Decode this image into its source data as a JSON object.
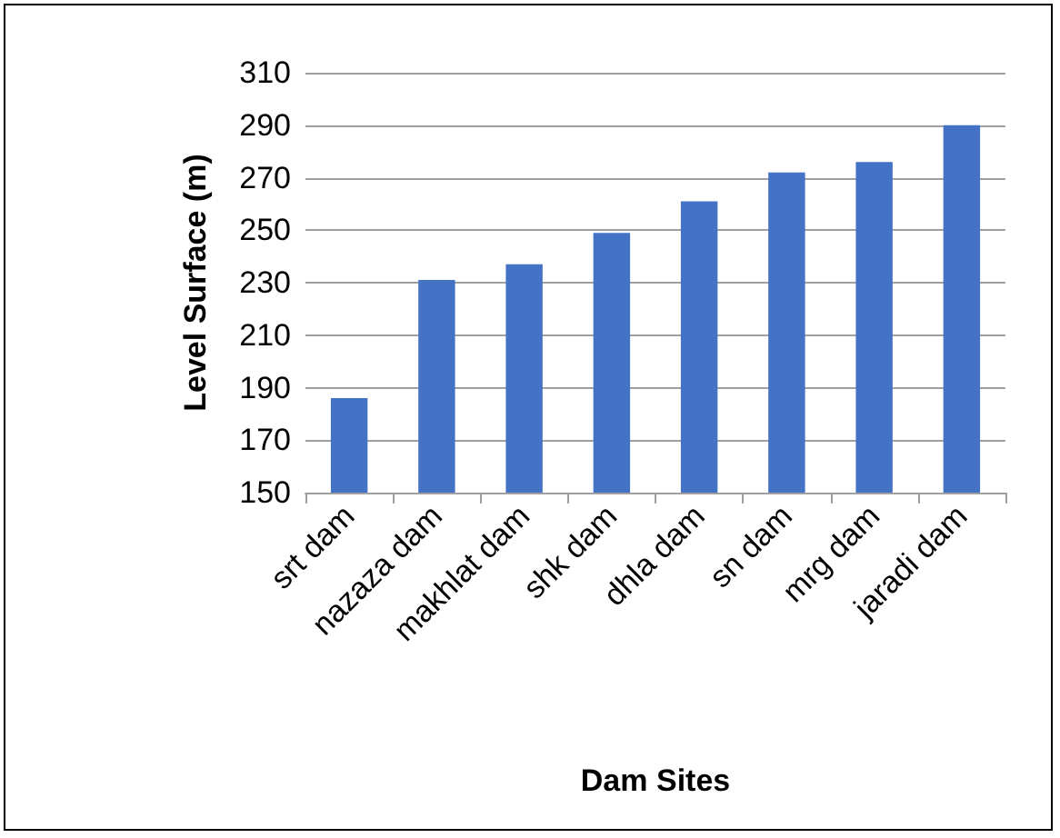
{
  "chart_data": {
    "type": "bar",
    "xlabel": "Dam Sites",
    "ylabel": "Level Surface (m)",
    "categories": [
      "srt dam",
      "nazaza dam",
      "makhlat dam",
      "shk dam",
      "dhla dam",
      "sn dam",
      "mrg dam",
      "jaradi dam"
    ],
    "values": [
      186,
      231,
      237,
      249,
      261,
      272,
      276,
      290
    ],
    "color": "#4472c4",
    "ylim": [
      150,
      310
    ],
    "yticks": [
      150,
      170,
      190,
      210,
      230,
      250,
      270,
      290,
      310
    ],
    "grid": "y"
  }
}
